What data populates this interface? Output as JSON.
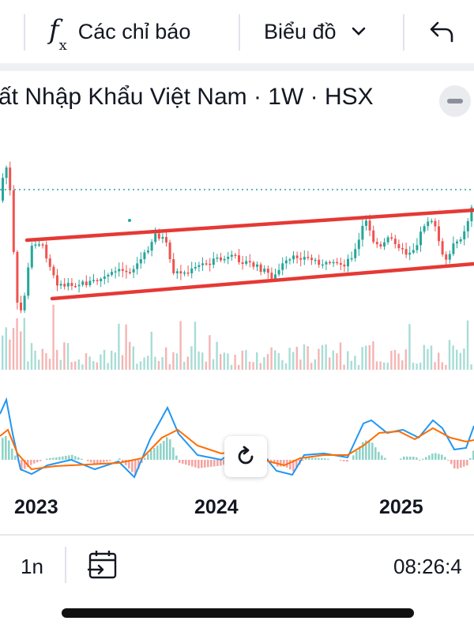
{
  "toolbar": {
    "indicators_label": "Các chỉ báo",
    "chart_type_label": "Biểu đồ",
    "icons": [
      "fx-icon",
      "chevron-down-icon",
      "undo-icon"
    ]
  },
  "title": "ất Nhập Khẩu Việt Nam · 1W · HSX",
  "bottom_bar": {
    "range_label": "1n",
    "time": "08:26:4",
    "icons": [
      "date-range-icon"
    ]
  },
  "colors": {
    "up": "#26a69a",
    "down": "#ef5350",
    "channel": "#e53935",
    "macd": "#2196f3",
    "signal": "#ff6d00",
    "price_line": "#26a69a"
  },
  "chart_data": {
    "type": "candlestick",
    "x_axis_labels": [
      "2023",
      "2024",
      "2025"
    ],
    "interval": "1W",
    "exchange": "HSX",
    "panels": [
      "price",
      "volume",
      "macd"
    ],
    "annotations": [
      "rising price channel (two parallel trendlines)",
      "dotted current price line"
    ],
    "grid": false
  }
}
